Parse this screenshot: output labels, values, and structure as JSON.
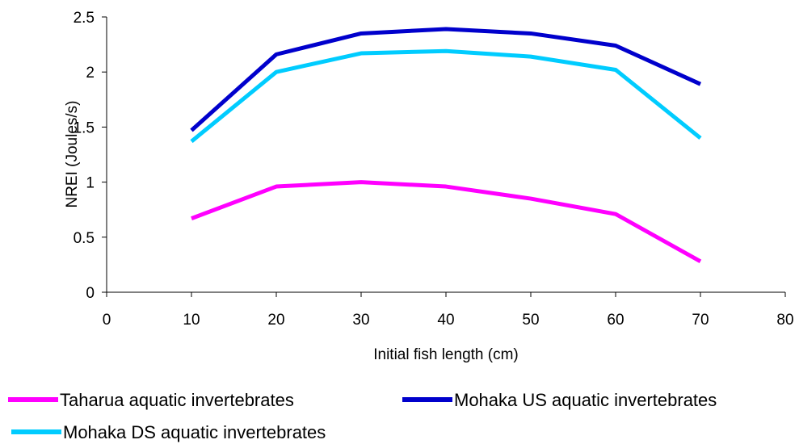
{
  "chart_data": {
    "type": "line",
    "title": "",
    "xlabel": "Initial fish length (cm)",
    "ylabel": "NREI (Joules/s)",
    "xlim": [
      0,
      80
    ],
    "ylim": [
      0,
      2.5
    ],
    "xticks": [
      "0",
      "10",
      "20",
      "30",
      "40",
      "50",
      "60",
      "70",
      "80"
    ],
    "yticks": [
      "0",
      "0.5",
      "1",
      "1.5",
      "2",
      "2.5"
    ],
    "grid": false,
    "legend_position": "bottom",
    "x": [
      10,
      20,
      30,
      40,
      50,
      60,
      70
    ],
    "series": [
      {
        "name": "Taharua aquatic invertebrates",
        "color": "#ff00ff",
        "values": [
          0.67,
          0.96,
          1.0,
          0.96,
          0.85,
          0.71,
          0.28
        ]
      },
      {
        "name": "Mohaka US aquatic invertebrates",
        "color": "#0000cc",
        "values": [
          1.47,
          2.16,
          2.35,
          2.39,
          2.35,
          2.24,
          1.89
        ]
      },
      {
        "name": "Mohaka DS aquatic invertebrates",
        "color": "#00ccff",
        "values": [
          1.37,
          2.0,
          2.17,
          2.19,
          2.14,
          2.02,
          1.4
        ]
      }
    ]
  }
}
